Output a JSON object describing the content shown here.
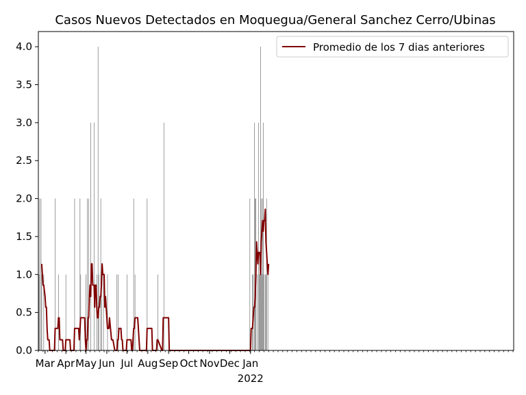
{
  "chart_data": {
    "type": "bar",
    "title": "Casos Nuevos Detectados en Moquegua/General Sanchez Cerro/Ubinas",
    "xlabel": "",
    "ylabel": "",
    "ylim": [
      0,
      4.2
    ],
    "xlim": [
      "2020-02-20",
      "2022-01-28"
    ],
    "x_is_date": true,
    "grid": false,
    "legend_position": "top-right",
    "yticks": [
      0.0,
      0.5,
      1.0,
      1.5,
      2.0,
      2.5,
      3.0,
      3.5,
      4.0
    ],
    "ytick_labels": [
      "0.0",
      "0.5",
      "1.0",
      "1.5",
      "2.0",
      "2.5",
      "3.0",
      "3.5",
      "4.0"
    ],
    "xticks": [
      {
        "date": "2020-03-01",
        "label": "Mar"
      },
      {
        "date": "2020-04-01",
        "label": "Apr"
      },
      {
        "date": "2020-05-01",
        "label": "May"
      },
      {
        "date": "2020-06-01",
        "label": "Jun"
      },
      {
        "date": "2020-07-01",
        "label": "Jul"
      },
      {
        "date": "2020-08-01",
        "label": "Aug"
      },
      {
        "date": "2020-09-01",
        "label": "Sep"
      },
      {
        "date": "2020-10-01",
        "label": "Oct"
      },
      {
        "date": "2020-11-01",
        "label": "Nov"
      },
      {
        "date": "2020-12-01",
        "label": "Dec"
      },
      {
        "date": "2021-01-01",
        "label": "Jan",
        "sublabel": "2022"
      }
    ],
    "bars": {
      "color": "#808080",
      "x": [
        "2020-02-21",
        "2020-02-22",
        "2020-02-24",
        "2020-02-25",
        "2020-02-28",
        "2020-03-16",
        "2020-03-21",
        "2020-04-01",
        "2020-04-14",
        "2020-04-22",
        "2020-04-23",
        "2020-05-01",
        "2020-05-03",
        "2020-05-05",
        "2020-05-08",
        "2020-05-13",
        "2020-05-17",
        "2020-05-19",
        "2020-05-20",
        "2020-05-23",
        "2020-05-24",
        "2020-05-27",
        "2020-06-02",
        "2020-06-16",
        "2020-06-18",
        "2020-07-01",
        "2020-07-11",
        "2020-07-13",
        "2020-07-31",
        "2020-08-16",
        "2020-08-25",
        "2020-12-31",
        "2021-01-04",
        "2021-01-05",
        "2021-01-07",
        "2021-01-08",
        "2021-01-09",
        "2021-01-11",
        "2021-01-13",
        "2021-01-14",
        "2021-01-15",
        "2021-01-16",
        "2021-01-17",
        "2021-01-18",
        "2021-01-19",
        "2021-01-20",
        "2021-01-21",
        "2021-01-23",
        "2021-01-24",
        "2021-01-25",
        "2021-01-27"
      ],
      "values": [
        1,
        2,
        2,
        1,
        1,
        2,
        1,
        1,
        2,
        2,
        1,
        1,
        2,
        2,
        3,
        3,
        1,
        4,
        1,
        2,
        1,
        1,
        1,
        1,
        1,
        1,
        2,
        1,
        2,
        1,
        3,
        2,
        1,
        1,
        3,
        2,
        2,
        1,
        3,
        1,
        1,
        4,
        2,
        1,
        2,
        3,
        1,
        1,
        1,
        2,
        1
      ]
    },
    "series": [
      {
        "name": "Promedio de los 7 dias anteriores",
        "color": "#800000",
        "x": [
          "2020-02-25",
          "2020-02-26",
          "2020-02-27",
          "2020-02-28",
          "2020-03-01",
          "2020-03-02",
          "2020-03-03",
          "2020-03-04",
          "2020-03-05",
          "2020-03-06",
          "2020-03-07",
          "2020-03-08",
          "2020-03-09",
          "2020-03-10",
          "2020-03-11",
          "2020-03-12",
          "2020-03-13",
          "2020-03-15",
          "2020-03-16",
          "2020-03-18",
          "2020-03-19",
          "2020-03-20",
          "2020-03-21",
          "2020-03-22",
          "2020-03-23",
          "2020-03-24",
          "2020-03-26",
          "2020-03-27",
          "2020-03-28",
          "2020-03-29",
          "2020-03-30",
          "2020-03-31",
          "2020-04-01",
          "2020-04-05",
          "2020-04-06",
          "2020-04-07",
          "2020-04-08",
          "2020-04-12",
          "2020-04-13",
          "2020-04-14",
          "2020-04-19",
          "2020-04-20",
          "2020-04-21",
          "2020-04-22",
          "2020-04-23",
          "2020-04-27",
          "2020-04-28",
          "2020-04-29",
          "2020-04-30",
          "2020-05-01",
          "2020-05-02",
          "2020-05-03",
          "2020-05-04",
          "2020-05-05",
          "2020-05-06",
          "2020-05-07",
          "2020-05-08",
          "2020-05-09",
          "2020-05-10",
          "2020-05-11",
          "2020-05-12",
          "2020-05-13",
          "2020-05-14",
          "2020-05-15",
          "2020-05-16",
          "2020-05-17",
          "2020-05-18",
          "2020-05-19",
          "2020-05-20",
          "2020-05-21",
          "2020-05-22",
          "2020-05-23",
          "2020-05-24",
          "2020-05-25",
          "2020-05-26",
          "2020-05-27",
          "2020-05-28",
          "2020-05-29",
          "2020-05-30",
          "2020-05-31",
          "2020-06-01",
          "2020-06-02",
          "2020-06-03",
          "2020-06-04",
          "2020-06-05",
          "2020-06-08",
          "2020-06-09",
          "2020-06-10",
          "2020-06-13",
          "2020-06-14",
          "2020-06-15",
          "2020-06-16",
          "2020-06-17",
          "2020-06-18",
          "2020-06-19",
          "2020-06-21",
          "2020-06-22",
          "2020-06-23",
          "2020-06-24",
          "2020-06-25",
          "2020-06-29",
          "2020-06-30",
          "2020-07-01",
          "2020-07-07",
          "2020-07-08",
          "2020-07-09",
          "2020-07-10",
          "2020-07-11",
          "2020-07-12",
          "2020-07-13",
          "2020-07-16",
          "2020-07-17",
          "2020-07-18",
          "2020-07-19",
          "2020-07-20",
          "2020-07-29",
          "2020-07-30",
          "2020-07-31",
          "2020-08-06",
          "2020-08-07",
          "2020-08-08",
          "2020-08-14",
          "2020-08-15",
          "2020-08-16",
          "2020-08-22",
          "2020-08-23",
          "2020-08-24",
          "2020-08-25",
          "2020-09-01",
          "2020-09-02",
          "2020-12-31",
          "2021-01-01",
          "2021-01-02",
          "2021-01-03",
          "2021-01-04",
          "2021-01-05",
          "2021-01-06",
          "2021-01-07",
          "2021-01-08",
          "2021-01-09",
          "2021-01-10",
          "2021-01-11",
          "2021-01-12",
          "2021-01-13",
          "2021-01-14",
          "2021-01-15",
          "2021-01-16",
          "2021-01-17",
          "2021-01-18",
          "2021-01-19",
          "2021-01-20",
          "2021-01-21",
          "2021-01-22",
          "2021-01-23",
          "2021-01-24",
          "2021-01-25",
          "2021-01-26",
          "2021-01-27",
          "2021-01-28"
        ],
        "values": [
          1.14,
          1.0,
          0.86,
          0.86,
          0.71,
          0.57,
          0.57,
          0.29,
          0.14,
          0.14,
          0.14,
          0.0,
          0.0,
          0.0,
          0.0,
          0.0,
          0.0,
          0.0,
          0.29,
          0.29,
          0.29,
          0.29,
          0.43,
          0.43,
          0.14,
          0.14,
          0.14,
          0.14,
          0.0,
          0.0,
          0.0,
          0.0,
          0.14,
          0.14,
          0.14,
          0.14,
          0.0,
          0.0,
          0.0,
          0.29,
          0.29,
          0.29,
          0.14,
          0.29,
          0.43,
          0.43,
          0.43,
          0.43,
          0.14,
          0.0,
          0.14,
          0.14,
          0.43,
          0.43,
          0.71,
          0.86,
          0.71,
          1.14,
          1.14,
          0.86,
          0.86,
          0.86,
          0.57,
          0.86,
          0.86,
          0.57,
          0.43,
          0.43,
          0.57,
          0.57,
          0.71,
          0.71,
          0.86,
          1.14,
          1.0,
          1.0,
          1.0,
          0.57,
          0.71,
          0.57,
          0.43,
          0.29,
          0.29,
          0.29,
          0.43,
          0.14,
          0.14,
          0.14,
          0.0,
          0.0,
          0.0,
          0.0,
          0.14,
          0.14,
          0.29,
          0.29,
          0.29,
          0.14,
          0.14,
          0.0,
          0.0,
          0.0,
          0.14,
          0.14,
          0.0,
          0.0,
          0.14,
          0.29,
          0.29,
          0.43,
          0.43,
          0.43,
          0.29,
          0.14,
          0.0,
          0.0,
          0.0,
          0.29,
          0.29,
          0.29,
          0.0,
          0.0,
          0.14,
          0.14,
          0.0,
          0.0,
          0.43,
          0.43,
          0.43,
          0.0,
          0.0,
          0.0,
          0.29,
          0.29,
          0.29,
          0.43,
          0.57,
          0.57,
          0.71,
          1.0,
          1.43,
          1.29,
          1.14,
          1.29,
          1.29,
          1.29,
          1.0,
          1.43,
          1.57,
          1.71,
          1.57,
          1.71,
          1.71,
          1.86,
          1.43,
          1.29,
          1.14,
          1.0,
          1.14
        ]
      }
    ]
  }
}
